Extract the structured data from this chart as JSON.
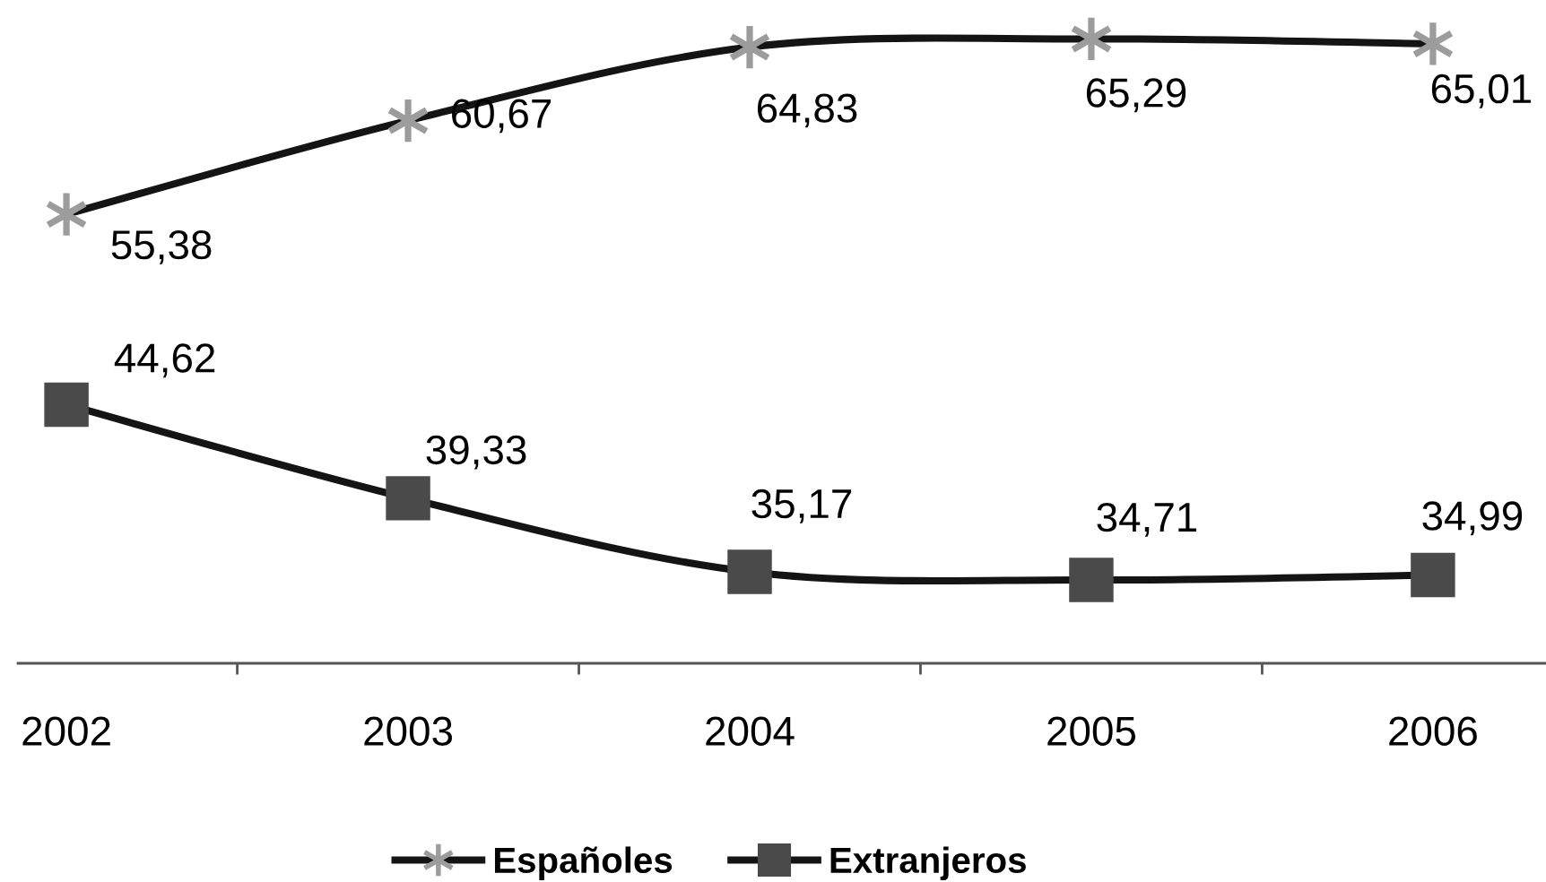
{
  "chart_data": {
    "type": "line",
    "categories": [
      "2002",
      "2003",
      "2004",
      "2005",
      "2006"
    ],
    "series": [
      {
        "name": "Españoles",
        "color": "#141414",
        "colors": [
          "#9c9c9c",
          "#9c9c9c",
          "#9c9c9c",
          "#9c9c9c",
          "#9c9c9c"
        ],
        "marker": "cross",
        "values": [
          55.38,
          60.67,
          64.83,
          65.29,
          65.01
        ],
        "value_labels": [
          "55,38",
          "60,67",
          "64,83",
          "65,29",
          "65,01"
        ]
      },
      {
        "name": "Extranjeros",
        "color": "#141414",
        "colors": [
          "#4a4a4a",
          "#4a4a4a",
          "#4a4a4a",
          "#4a4a4a",
          "#4a4a4a"
        ],
        "marker": "square",
        "values": [
          44.62,
          39.33,
          35.17,
          34.71,
          34.99
        ],
        "value_labels": [
          "44,62",
          "39,33",
          "35,17",
          "34,71",
          "34,99"
        ]
      }
    ],
    "tick_labels": "x",
    "grid": false,
    "legend": "bottom",
    "line_style": "solid"
  }
}
